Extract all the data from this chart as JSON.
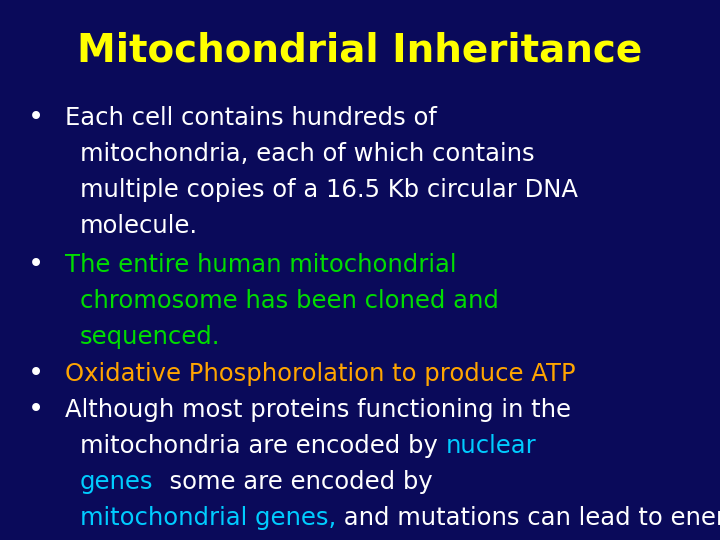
{
  "title": "Mitochondrial Inheritance",
  "title_color": "#FFFF00",
  "background_color": "#0A0A5A",
  "figsize": [
    7.2,
    5.4
  ],
  "dpi": 100,
  "bullet_color": "#FFFFFF",
  "bullet_symbol": "•",
  "title_fontsize": 28,
  "body_fontsize": 17.5,
  "lines": [
    {
      "bullet": true,
      "parts": [
        {
          "t": "Each cell contains hundreds of mitochondria, each of which contains",
          "c": "#FFFFFF"
        }
      ]
    },
    {
      "bullet": false,
      "parts": [
        {
          "t": "mitochondria, each of which contains",
          "c": "#FFFFFF"
        }
      ],
      "skip": true
    },
    {
      "bullet": false,
      "parts": [
        {
          "t": "multiple copies of a 16.5 Kb circular DNA molecule.",
          "c": "#FFFFFF"
        }
      ],
      "indent": true
    },
    {
      "bullet": true,
      "parts": [
        {
          "t": "The entire human mitochondrial chromosome has been cloned and",
          "c": "#00DD00"
        }
      ]
    },
    {
      "bullet": false,
      "parts": [
        {
          "t": "sequenced.",
          "c": "#00DD00"
        }
      ],
      "indent": true
    },
    {
      "bullet": true,
      "parts": [
        {
          "t": "Oxidative Phosphorolation to produce ATP",
          "c": "#FFA500"
        }
      ]
    },
    {
      "bullet": true,
      "parts": [
        {
          "t": "Although most proteins functioning in the mitochondria are encoded by ",
          "c": "#FFFFFF"
        },
        {
          "t": "nuclear",
          "c": "#00CCFF"
        }
      ]
    },
    {
      "bullet": false,
      "parts": [
        {
          "t": "genes",
          "c": "#00CCFF"
        },
        {
          "t": "  some are encoded by",
          "c": "#FFFFFF"
        }
      ],
      "indent": true
    },
    {
      "bullet": false,
      "parts": [
        {
          "t": "mitochondrial genes,",
          "c": "#00CCFF"
        },
        {
          "t": " and mutations can lead to energy failure.",
          "c": "#FFFFFF"
        }
      ],
      "indent": true
    }
  ]
}
